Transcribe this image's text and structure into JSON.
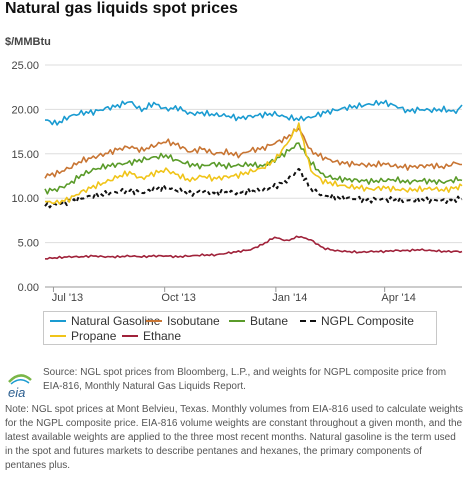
{
  "header": {
    "title": "Natural gas liquids spot prices",
    "unit": "$/MMBtu"
  },
  "chart_data": {
    "type": "line",
    "title": "Natural gas liquids spot prices",
    "ylabel": "$/MMBtu",
    "ylim": [
      0,
      25
    ],
    "yticks": [
      "0.00",
      "5.00",
      "10.00",
      "15.00",
      "20.00",
      "25.00"
    ],
    "xticks": [
      {
        "label": "Jul '13",
        "x": 7
      },
      {
        "label": "Oct '13",
        "x": 99
      },
      {
        "label": "Jan '14",
        "x": 191
      },
      {
        "label": "Apr '14",
        "x": 281
      }
    ],
    "xlim": [
      0,
      345
    ],
    "grid": true,
    "legend_position": "bottom",
    "series": [
      {
        "name": "Natural Gasoline",
        "color": "#1a9bd1",
        "dash": false,
        "x": [
          0,
          10,
          20,
          30,
          40,
          50,
          60,
          70,
          80,
          90,
          100,
          110,
          120,
          130,
          140,
          150,
          160,
          170,
          180,
          190,
          200,
          210,
          220,
          230,
          240,
          250,
          260,
          270,
          280,
          290,
          300,
          310,
          320,
          330,
          340,
          345
        ],
        "y": [
          18.8,
          18.4,
          19.2,
          19.6,
          19.7,
          20.1,
          20.4,
          20.9,
          19.9,
          20.7,
          20.0,
          20.2,
          19.5,
          19.6,
          19.4,
          19.3,
          19.0,
          19.2,
          19.4,
          19.5,
          19.1,
          18.9,
          19.1,
          19.6,
          19.9,
          20.2,
          20.4,
          20.6,
          20.8,
          20.4,
          19.8,
          20.0,
          19.9,
          20.0,
          19.7,
          20.5
        ]
      },
      {
        "name": "Isobutane",
        "color": "#c87533",
        "dash": false,
        "x": [
          0,
          10,
          20,
          30,
          40,
          50,
          60,
          70,
          80,
          90,
          100,
          110,
          120,
          130,
          140,
          150,
          160,
          170,
          180,
          190,
          200,
          210,
          220,
          230,
          240,
          250,
          260,
          270,
          280,
          290,
          300,
          310,
          320,
          330,
          340,
          345
        ],
        "y": [
          12.5,
          12.8,
          13.4,
          14.2,
          14.6,
          15.0,
          15.5,
          15.8,
          15.4,
          15.9,
          16.4,
          16.0,
          15.2,
          15.6,
          15.0,
          15.2,
          14.8,
          15.4,
          15.6,
          16.2,
          16.8,
          17.9,
          15.3,
          14.6,
          14.1,
          13.9,
          13.8,
          13.7,
          13.9,
          13.6,
          13.5,
          13.6,
          13.7,
          13.5,
          14.0,
          13.8
        ]
      },
      {
        "name": "Butane",
        "color": "#5a9b2a",
        "dash": false,
        "x": [
          0,
          10,
          20,
          30,
          40,
          50,
          60,
          70,
          80,
          90,
          100,
          110,
          120,
          130,
          140,
          150,
          160,
          170,
          180,
          190,
          200,
          210,
          220,
          230,
          240,
          250,
          260,
          270,
          280,
          290,
          300,
          310,
          320,
          330,
          340,
          345
        ],
        "y": [
          10.8,
          11.0,
          11.6,
          12.6,
          13.2,
          13.6,
          13.8,
          14.0,
          14.3,
          14.6,
          14.8,
          14.2,
          13.8,
          13.6,
          13.9,
          13.6,
          13.7,
          13.8,
          13.6,
          14.3,
          15.2,
          16.2,
          14.0,
          12.6,
          12.2,
          12.1,
          12.0,
          11.9,
          12.0,
          12.1,
          11.8,
          12.0,
          11.9,
          11.8,
          12.1,
          12.0
        ]
      },
      {
        "name": "NGPL Composite",
        "color": "#111111",
        "dash": true,
        "x": [
          0,
          10,
          20,
          30,
          40,
          50,
          60,
          70,
          80,
          90,
          100,
          110,
          120,
          130,
          140,
          150,
          160,
          170,
          180,
          190,
          200,
          210,
          220,
          230,
          240,
          250,
          260,
          270,
          280,
          290,
          300,
          310,
          320,
          330,
          340,
          345
        ],
        "y": [
          9.2,
          9.3,
          9.6,
          10.0,
          10.3,
          10.5,
          10.7,
          10.9,
          10.6,
          11.0,
          11.2,
          10.9,
          10.5,
          10.8,
          10.6,
          10.7,
          10.6,
          10.8,
          10.9,
          11.3,
          12.0,
          13.3,
          11.0,
          10.3,
          10.1,
          10.0,
          9.9,
          9.8,
          9.9,
          9.8,
          9.7,
          9.8,
          9.8,
          9.7,
          9.9,
          9.9
        ]
      },
      {
        "name": "Propane",
        "color": "#f0c419",
        "dash": false,
        "x": [
          0,
          10,
          20,
          30,
          40,
          50,
          60,
          70,
          80,
          90,
          100,
          110,
          120,
          130,
          140,
          150,
          160,
          170,
          180,
          190,
          200,
          210,
          220,
          230,
          240,
          250,
          260,
          270,
          280,
          290,
          300,
          310,
          320,
          330,
          340,
          345
        ],
        "y": [
          9.6,
          9.5,
          9.9,
          10.7,
          11.3,
          11.8,
          12.4,
          12.9,
          12.2,
          12.8,
          13.2,
          12.6,
          12.0,
          12.5,
          12.2,
          12.4,
          12.6,
          13.0,
          13.4,
          14.3,
          16.1,
          18.3,
          13.1,
          11.9,
          11.6,
          11.3,
          11.2,
          11.0,
          11.2,
          11.0,
          10.9,
          11.0,
          11.1,
          10.9,
          11.2,
          11.4
        ]
      },
      {
        "name": "Ethane",
        "color": "#a0223a",
        "dash": false,
        "x": [
          0,
          10,
          20,
          30,
          40,
          50,
          60,
          70,
          80,
          90,
          100,
          110,
          120,
          130,
          140,
          150,
          160,
          170,
          180,
          190,
          200,
          210,
          220,
          230,
          240,
          250,
          260,
          270,
          280,
          290,
          300,
          310,
          320,
          330,
          340,
          345
        ],
        "y": [
          3.2,
          3.3,
          3.4,
          3.4,
          3.5,
          3.4,
          3.4,
          3.5,
          3.4,
          3.5,
          3.5,
          3.4,
          3.5,
          3.6,
          3.6,
          3.8,
          4.0,
          4.2,
          4.8,
          5.6,
          5.2,
          5.7,
          5.3,
          4.4,
          4.1,
          4.0,
          3.9,
          4.0,
          4.0,
          4.1,
          4.1,
          4.2,
          4.1,
          4.0,
          4.0,
          4.0
        ]
      }
    ]
  },
  "legend": [
    {
      "name": "Natural Gasoline",
      "color": "#1a9bd1",
      "dash": false
    },
    {
      "name": "Isobutane",
      "color": "#c87533",
      "dash": false
    },
    {
      "name": "Butane",
      "color": "#5a9b2a",
      "dash": false
    },
    {
      "name": "NGPL Composite",
      "color": "#111111",
      "dash": true
    },
    {
      "name": "Propane",
      "color": "#f0c419",
      "dash": false
    },
    {
      "name": "Ethane",
      "color": "#a0223a",
      "dash": false
    }
  ],
  "footer": {
    "logo_text": "eia",
    "source": "Source: NGL spot prices from Bloomberg, L.P., and weights for NGPL composite price from EIA-816, Monthly Natural Gas Liquids Report.",
    "note": "Note: NGL spot prices at Mont Belvieu, Texas. Monthly volumes from EIA-816 used to calculate weights for the NGPL composite price. EIA-816 volume weights are constant throughout a given month, and the latest available weights are applied to the three most recent months. Natural gasoline is the term used in the spot and futures markets to describe pentanes and hexanes, the primary components of pentanes plus."
  }
}
